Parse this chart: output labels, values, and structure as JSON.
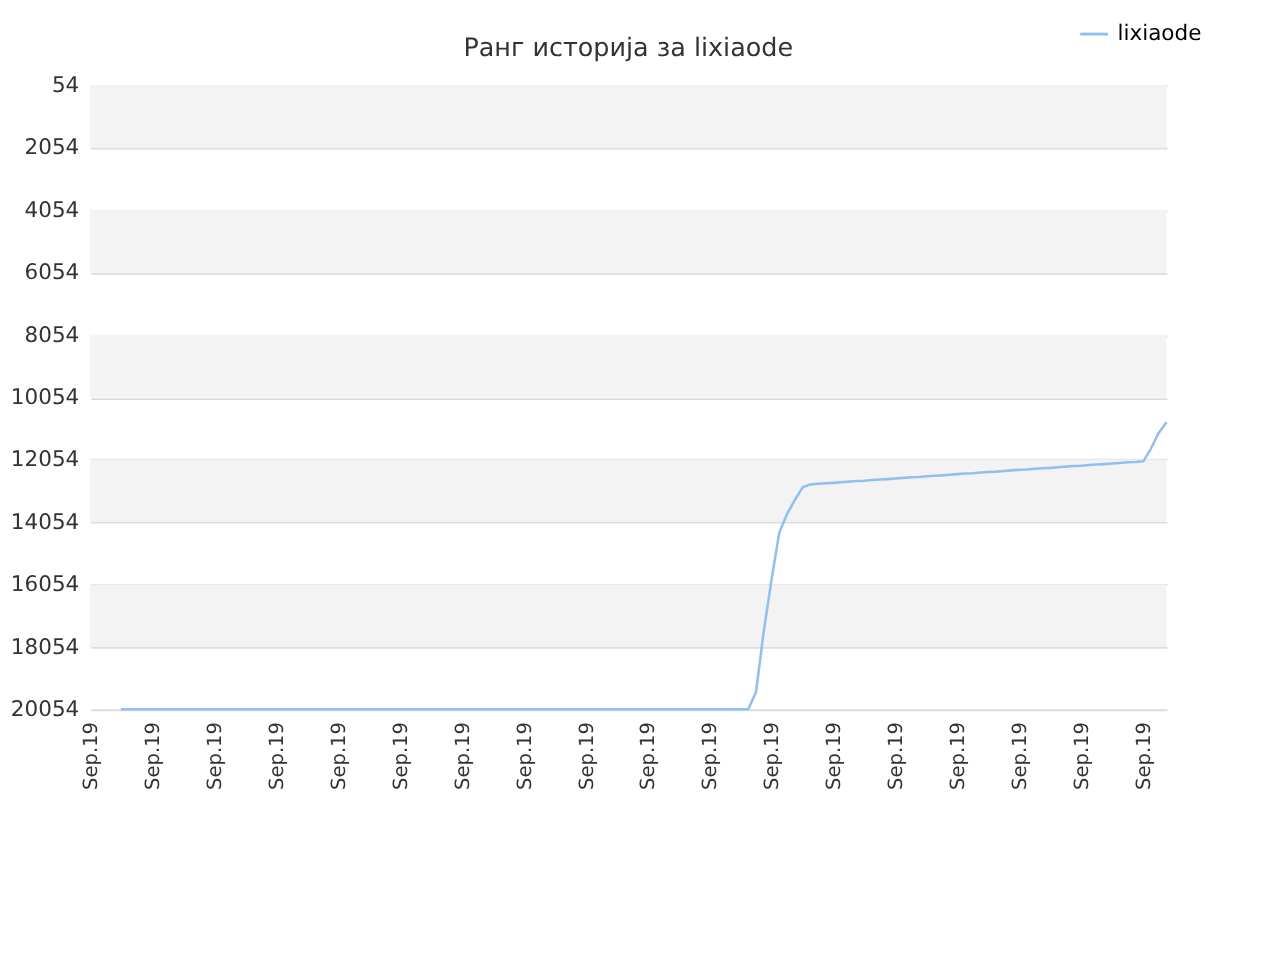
{
  "chart_data": {
    "type": "line",
    "title": "Ранг историја за lixiaode",
    "categories": [
      "Sep.19",
      null,
      null,
      null,
      null,
      null,
      null,
      null,
      "Sep.19",
      null,
      null,
      null,
      null,
      null,
      null,
      null,
      "Sep.19",
      null,
      null,
      null,
      null,
      null,
      null,
      null,
      "Sep.19",
      null,
      null,
      null,
      null,
      null,
      null,
      null,
      "Sep.19",
      null,
      null,
      null,
      null,
      null,
      null,
      null,
      "Sep.19",
      null,
      null,
      null,
      null,
      null,
      null,
      null,
      "Sep.19",
      null,
      null,
      null,
      null,
      null,
      null,
      null,
      "Sep.19",
      null,
      null,
      null,
      null,
      null,
      null,
      null,
      "Sep.19",
      null,
      null,
      null,
      null,
      null,
      null,
      null,
      "Sep.19",
      null,
      null,
      null,
      null,
      null,
      null,
      null,
      "Sep.19",
      null,
      null,
      null,
      null,
      null,
      null,
      null,
      "Sep.19",
      null,
      null,
      null,
      null,
      null,
      null,
      null,
      "Sep.19",
      null,
      null,
      null,
      null,
      null,
      null,
      null,
      "Sep.19",
      null,
      null,
      null,
      null,
      null,
      null,
      null,
      "Sep.19",
      null,
      null,
      null,
      null,
      null,
      null,
      null,
      "Sep.19",
      null,
      null,
      null,
      null,
      null,
      null,
      null,
      "Sep.19",
      null,
      null,
      null,
      null,
      null,
      null,
      null,
      "Sep.19",
      null,
      null,
      null
    ],
    "series": [
      {
        "name": "lixiaode",
        "color": "#90c0f0",
        "values": [
          null,
          null,
          null,
          null,
          20054,
          20054,
          20054,
          20054,
          20054,
          20054,
          20054,
          20054,
          20054,
          20054,
          20054,
          20054,
          20054,
          20054,
          20054,
          20054,
          20054,
          20054,
          20054,
          20054,
          20054,
          20054,
          20054,
          20054,
          20054,
          20054,
          20054,
          20054,
          20054,
          20054,
          20054,
          20054,
          20054,
          20054,
          20054,
          20054,
          20054,
          20054,
          20054,
          20054,
          20054,
          20054,
          20054,
          20054,
          20054,
          20054,
          20054,
          20054,
          20054,
          20054,
          20054,
          20054,
          20054,
          20054,
          20054,
          20054,
          20054,
          20054,
          20054,
          20054,
          20054,
          20054,
          20054,
          20054,
          20054,
          20054,
          20054,
          20054,
          20054,
          20054,
          20054,
          20054,
          20054,
          20054,
          20054,
          20054,
          20054,
          20054,
          20054,
          20054,
          20054,
          20054,
          19500,
          17550,
          15900,
          14400,
          13800,
          13350,
          12950,
          12850,
          12830,
          12810,
          12800,
          12780,
          12760,
          12740,
          12730,
          12710,
          12690,
          12680,
          12660,
          12640,
          12620,
          12610,
          12590,
          12570,
          12560,
          12540,
          12520,
          12500,
          12490,
          12470,
          12450,
          12440,
          12420,
          12400,
          12380,
          12370,
          12350,
          12330,
          12320,
          12300,
          12280,
          12260,
          12250,
          12230,
          12210,
          12200,
          12180,
          12160,
          12140,
          12130,
          12110,
          11700,
          11200,
          10860
        ]
      }
    ],
    "ylim": [
      20054,
      54
    ],
    "yticks": [
      54,
      2054,
      4054,
      6054,
      8054,
      10054,
      12054,
      14054,
      16054,
      18054,
      20054
    ],
    "bands": [
      {
        "axis": "y",
        "from": 54,
        "to": 2054,
        "color": "#f3f3f3"
      },
      {
        "axis": "y",
        "from": 4054,
        "to": 6054,
        "color": "#f3f3f3"
      },
      {
        "axis": "y",
        "from": 8054,
        "to": 10054,
        "color": "#f3f3f3"
      },
      {
        "axis": "y",
        "from": 12054,
        "to": 14054,
        "color": "#f3f3f3"
      },
      {
        "axis": "y",
        "from": 16054,
        "to": 18054,
        "color": "#f3f3f3"
      }
    ],
    "grid": "y",
    "legend": "top right",
    "marker": "none",
    "line_style": "solid"
  }
}
